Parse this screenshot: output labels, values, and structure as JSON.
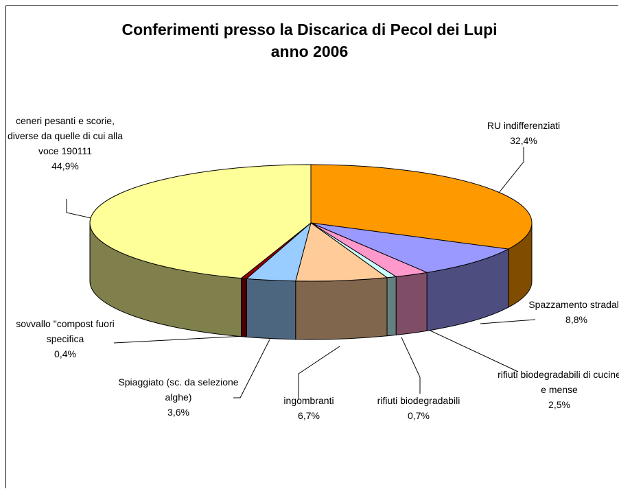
{
  "chart_data": {
    "type": "pie3d",
    "title": [
      "Conferimenti presso la Discarica di Pecol dei Lupi",
      "anno 2006"
    ],
    "categories": [
      "RU indifferenziati",
      "Spazzamento stradale",
      "rifiuti biodegradabili di cucine e mense",
      "rifiuti biodegradabili",
      "ingombranti",
      "Spiaggiato (sc. da selezione alghe)",
      "sovvallo \"compost fuori specifica",
      "ceneri pesanti e scorie, diverse da quelle di cui alla voce 190111"
    ],
    "values": [
      32.4,
      8.8,
      2.5,
      0.7,
      6.7,
      3.6,
      0.4,
      44.9
    ],
    "value_labels": [
      "32,4%",
      "8,8%",
      "2,5%",
      "0,7%",
      "6,7%",
      "3,6%",
      "0,4%",
      "44,9%"
    ],
    "colors": [
      "#FF9900",
      "#9999FF",
      "#FF99CC",
      "#CCFFFF",
      "#FFCC99",
      "#99CCFF",
      "#990000",
      "#FFFF99"
    ]
  }
}
